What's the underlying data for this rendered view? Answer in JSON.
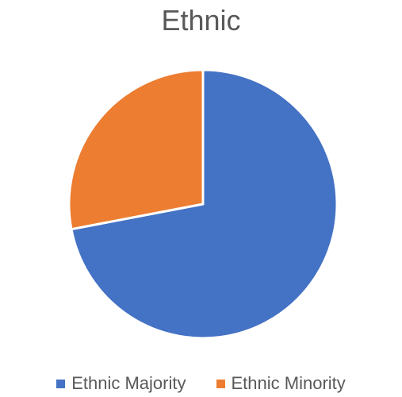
{
  "chart_data": {
    "type": "pie",
    "title": "Ethnic",
    "categories": [
      "Ethnic Majority",
      "Ethnic Minority"
    ],
    "values": [
      72,
      28
    ],
    "colors": [
      "#4472C4",
      "#ED7D31"
    ],
    "legend_position": "bottom"
  }
}
